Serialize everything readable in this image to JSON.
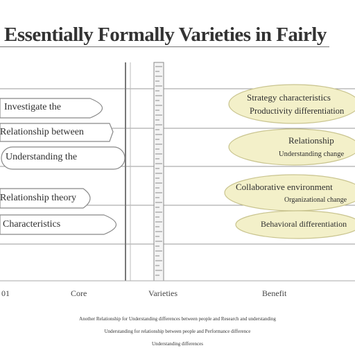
{
  "title": "Essentially Formally Varieties in Fairly",
  "left_items": [
    "Investigate the",
    "Relationship between",
    "Understanding the",
    "Relationship theory",
    "Characteristics"
  ],
  "right_items": [
    [
      "Strategy characteristics",
      "Productivity differentiation"
    ],
    [
      "Relationship",
      "Understanding change"
    ],
    [
      "Collaborative environment",
      "Organizational change"
    ],
    [
      "Behavioral differentiation"
    ]
  ],
  "axis_labels": [
    "01",
    "Core",
    "Varieties",
    "Benefit"
  ],
  "caption_lines": [
    "Another Relationship for Understanding differences between people and Research and understanding",
    "Understanding for relationship between people and Performance difference",
    "Understanding differences"
  ],
  "colors": {
    "pill_fill": "#f3f0c9",
    "pill_stroke": "#c9c48f",
    "line": "#888888",
    "title": "#333333"
  }
}
